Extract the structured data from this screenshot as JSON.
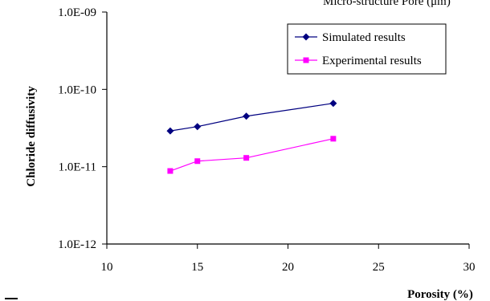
{
  "page": {
    "top_cut_text": "Micro-structure Pore (μm)"
  },
  "chart_data": {
    "type": "line",
    "title": "",
    "xlabel": "Porosity (%)",
    "ylabel": "Chloride diffusivity",
    "xlim": [
      10,
      30
    ],
    "ylim": [
      1e-12,
      1e-09
    ],
    "y_scale": "log",
    "x_ticks": [
      10,
      15,
      20,
      25,
      30
    ],
    "y_ticks": [
      1e-12,
      1e-11,
      1e-10,
      1e-09
    ],
    "x_tick_labels": [
      "10",
      "15",
      "20",
      "25",
      "30"
    ],
    "y_tick_labels": [
      "1.0E-12",
      "1.0E-11",
      "1.0E-10",
      "1.0E-09"
    ],
    "grid": false,
    "legend_position": "top-right",
    "series": [
      {
        "name": "Simulated results",
        "marker": "diamond",
        "color": "#000080",
        "x": [
          13.5,
          15.0,
          17.7,
          22.5
        ],
        "y": [
          2.9e-11,
          3.3e-11,
          4.5e-11,
          6.6e-11
        ]
      },
      {
        "name": "Experimental results",
        "marker": "square",
        "color": "#ff00ff",
        "x": [
          13.5,
          15.0,
          17.7,
          22.5
        ],
        "y": [
          8.8e-12,
          1.18e-11,
          1.3e-11,
          2.3e-11
        ]
      }
    ]
  }
}
